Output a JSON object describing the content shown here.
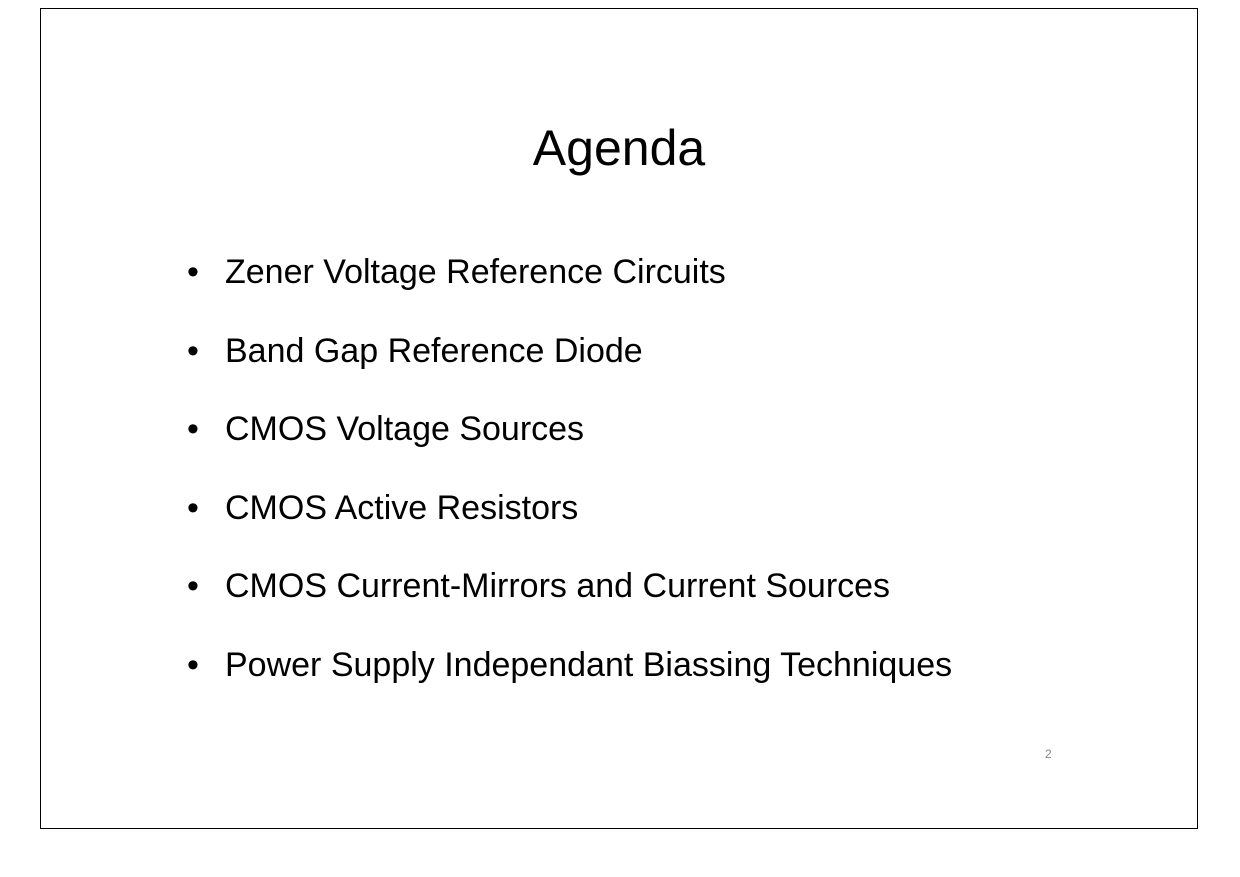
{
  "slide": {
    "title": "Agenda",
    "bullet_symbol": "•",
    "items": [
      {
        "text": "Zener Voltage Reference Circuits"
      },
      {
        "text": "Band Gap Reference Diode"
      },
      {
        "text": "CMOS Voltage Sources"
      },
      {
        "text": "CMOS Active Resistors"
      },
      {
        "text": "CMOS Current-Mirrors and Current Sources"
      },
      {
        "text": "Power Supply Independant Biassing Techniques"
      }
    ],
    "page_number": "2"
  }
}
